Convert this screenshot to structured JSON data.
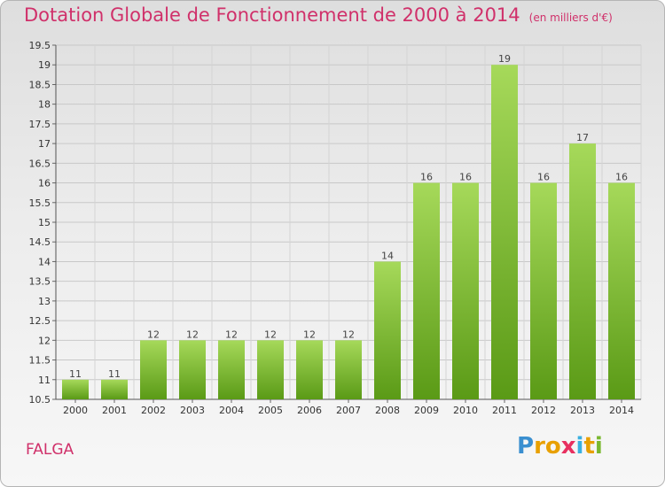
{
  "title": "Dotation Globale de Fonctionnement de 2000 à 2014",
  "unit_note": "(en milliers d'€)",
  "commune": "FALGA",
  "logo": {
    "letters": [
      "P",
      "r",
      "o",
      "x",
      "i",
      "t",
      "i"
    ],
    "colors": [
      "#3a8fd0",
      "#e8a000",
      "#e8a000",
      "#e83060",
      "#3ab0e0",
      "#e8a000",
      "#7ab830"
    ]
  },
  "colors": {
    "title": "#d0306a",
    "bar_light": "#a6d95a",
    "bar_dark": "#5a9a16"
  },
  "chart_data": {
    "type": "bar",
    "title": "Dotation Globale de Fonctionnement de 2000 à 2014",
    "xlabel": "",
    "ylabel": "",
    "categories": [
      "2000",
      "2001",
      "2002",
      "2003",
      "2004",
      "2005",
      "2006",
      "2007",
      "2008",
      "2009",
      "2010",
      "2011",
      "2012",
      "2013",
      "2014"
    ],
    "values": [
      11,
      11,
      12,
      12,
      12,
      12,
      12,
      12,
      14,
      16,
      16,
      19,
      16,
      17,
      16
    ],
    "ylim": [
      10.5,
      19.5
    ],
    "yticks": [
      "10.5",
      "11",
      "11.5",
      "12",
      "12.5",
      "13",
      "13.5",
      "14",
      "14.5",
      "15",
      "15.5",
      "16",
      "16.5",
      "17",
      "17.5",
      "18",
      "18.5",
      "19",
      "19.5"
    ],
    "grid": true
  }
}
